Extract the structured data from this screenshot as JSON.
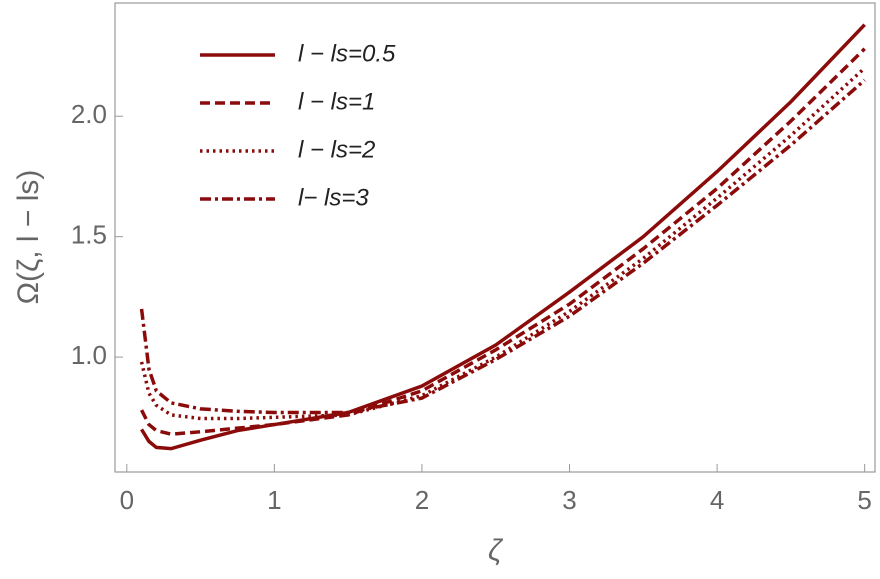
{
  "chart_data": {
    "type": "line",
    "x_label": "ζ",
    "y_label": "Ω(ζ, l − ls)",
    "x": [
      0.1,
      0.15,
      0.2,
      0.3,
      0.5,
      0.75,
      1,
      1.5,
      2,
      2.5,
      3,
      3.5,
      4,
      4.5,
      5
    ],
    "series": [
      {
        "name": "l − ls=0.5",
        "color": "#8b0a0a",
        "dash": "solid",
        "values": [
          0.7,
          0.65,
          0.625,
          0.62,
          0.655,
          0.695,
          0.72,
          0.77,
          0.88,
          1.05,
          1.27,
          1.5,
          1.77,
          2.06,
          2.38
        ]
      },
      {
        "name": "l − ls=1",
        "color": "#8b0a0a",
        "dash": "dashed",
        "values": [
          0.78,
          0.72,
          0.695,
          0.68,
          0.69,
          0.705,
          0.72,
          0.76,
          0.86,
          1.03,
          1.22,
          1.45,
          1.7,
          1.98,
          2.28
        ]
      },
      {
        "name": "l − ls=2",
        "color": "#8b0a0a",
        "dash": "dotted",
        "values": [
          0.98,
          0.85,
          0.8,
          0.76,
          0.745,
          0.745,
          0.75,
          0.76,
          0.84,
          1.0,
          1.19,
          1.41,
          1.66,
          1.92,
          2.2
        ]
      },
      {
        "name": "l− ls=3",
        "color": "#8b0a0a",
        "dash": "dashdot",
        "values": [
          1.2,
          0.95,
          0.86,
          0.81,
          0.785,
          0.775,
          0.77,
          0.77,
          0.83,
          0.99,
          1.17,
          1.39,
          1.63,
          1.88,
          2.15
        ]
      }
    ],
    "xlim": [
      -0.08,
      5.07
    ],
    "ylim": [
      0.523,
      2.47
    ],
    "xticks": [
      0,
      1,
      2,
      3,
      4,
      5
    ],
    "yticks": [
      {
        "value": 1,
        "label": "1.0"
      },
      {
        "value": 1.5,
        "label": "1.5"
      },
      {
        "value": 2,
        "label": "2.0"
      }
    ],
    "legend": "top-left"
  }
}
